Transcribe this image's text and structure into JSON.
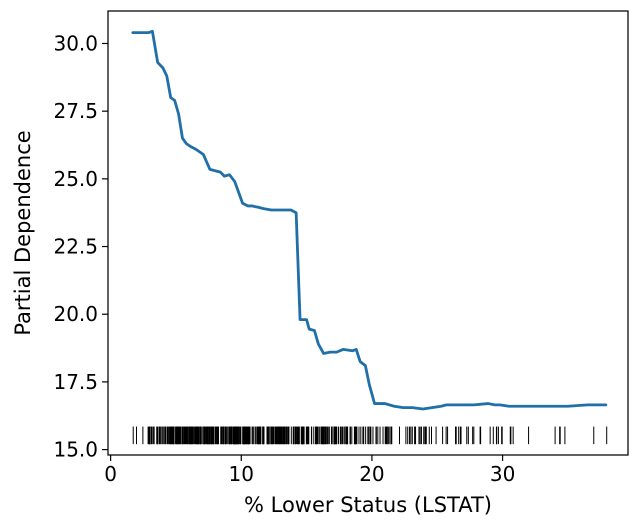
{
  "chart_data": {
    "type": "line",
    "title": "",
    "xlabel": "% Lower Status (LSTAT)",
    "ylabel": "Partial Dependence",
    "xlim": [
      -0.2,
      39.6
    ],
    "ylim": [
      14.8,
      31.2
    ],
    "xticks": [
      0,
      10,
      20,
      30
    ],
    "xtick_labels": [
      "0",
      "10",
      "20",
      "30"
    ],
    "yticks": [
      15.0,
      17.5,
      20.0,
      22.5,
      25.0,
      27.5,
      30.0
    ],
    "ytick_labels": [
      "15.0",
      "17.5",
      "20.0",
      "22.5",
      "25.0",
      "27.5",
      "30.0"
    ],
    "grid": false,
    "line_color": "#1f6fa8",
    "rug_color": "#000000",
    "series": [
      {
        "x": [
          1.7,
          2.9,
          3.2,
          3.6,
          4.0,
          4.3,
          4.6,
          4.9,
          5.2,
          5.5,
          5.8,
          6.1,
          6.5,
          6.8,
          7.1,
          7.6,
          8.0,
          8.4,
          8.7,
          9.1,
          9.5,
          9.8,
          10.1,
          10.5,
          10.8,
          11.3,
          11.7,
          12.3,
          13.0,
          13.8,
          14.2,
          14.5,
          14.7,
          15.0,
          15.2,
          15.6,
          15.9,
          16.3,
          16.8,
          17.3,
          17.8,
          18.5,
          18.8,
          19.1,
          19.5,
          19.8,
          20.2,
          21.0,
          21.7,
          22.4,
          23.1,
          23.9,
          24.6,
          25.3,
          25.7,
          26.5,
          27.8,
          28.9,
          29.4,
          29.8,
          30.5,
          32.0,
          33.0,
          34.0,
          35.0,
          36.5,
          37.9
        ],
        "y": [
          30.4,
          30.4,
          30.45,
          29.3,
          29.1,
          28.8,
          28.0,
          27.9,
          27.4,
          26.5,
          26.3,
          26.2,
          26.1,
          26.0,
          25.9,
          25.35,
          25.3,
          25.25,
          25.1,
          25.15,
          24.9,
          24.5,
          24.1,
          24.0,
          24.0,
          23.95,
          23.9,
          23.85,
          23.85,
          23.85,
          23.75,
          19.8,
          19.8,
          19.8,
          19.45,
          19.4,
          18.9,
          18.55,
          18.6,
          18.6,
          18.7,
          18.65,
          18.7,
          18.25,
          18.1,
          17.4,
          16.7,
          16.7,
          16.6,
          16.55,
          16.55,
          16.5,
          16.55,
          16.6,
          16.65,
          16.65,
          16.65,
          16.7,
          16.65,
          16.65,
          16.6,
          16.6,
          16.6,
          16.6,
          16.6,
          16.65,
          16.65
        ]
      }
    ],
    "rug": [
      1.73,
      1.98,
      2.47,
      2.87,
      2.94,
      2.96,
      2.98,
      3.01,
      3.11,
      3.16,
      3.26,
      3.33,
      3.53,
      3.56,
      3.57,
      3.59,
      3.7,
      3.73,
      3.76,
      3.81,
      3.92,
      3.95,
      4.03,
      4.14,
      4.16,
      4.21,
      4.32,
      4.38,
      4.45,
      4.5,
      4.56,
      4.59,
      4.63,
      4.67,
      4.7,
      4.74,
      4.81,
      4.82,
      4.84,
      4.85,
      4.86,
      4.97,
      5.03,
      5.04,
      5.08,
      5.1,
      5.12,
      5.19,
      5.21,
      5.25,
      5.29,
      5.33,
      5.39,
      5.49,
      5.5,
      5.52,
      5.57,
      5.64,
      5.68,
      5.7,
      5.77,
      5.81,
      5.89,
      5.9,
      5.98,
      5.99,
      6.05,
      6.07,
      6.12,
      6.15,
      6.19,
      6.21,
      6.27,
      6.29,
      6.36,
      6.43,
      6.47,
      6.53,
      6.56,
      6.58,
      6.62,
      6.65,
      6.68,
      6.72,
      6.73,
      6.75,
      6.78,
      6.86,
      6.87,
      6.9,
      6.92,
      7.01,
      7.12,
      7.14,
      7.18,
      7.19,
      7.2,
      7.26,
      7.34,
      7.37,
      7.39,
      7.43,
      7.44,
      7.51,
      7.53,
      7.54,
      7.56,
      7.6,
      7.67,
      7.7,
      7.73,
      7.74,
      7.79,
      7.83,
      7.85,
      7.88,
      7.9,
      8.01,
      8.05,
      8.1,
      8.16,
      8.2,
      8.23,
      8.26,
      8.43,
      8.47,
      8.51,
      8.58,
      8.61,
      8.65,
      8.67,
      8.77,
      8.79,
      8.81,
      8.88,
      8.93,
      9.04,
      9.08,
      9.1,
      9.14,
      9.16,
      9.22,
      9.25,
      9.28,
      9.29,
      9.38,
      9.42,
      9.43,
      9.45,
      9.47,
      9.5,
      9.51,
      9.52,
      9.53,
      9.54,
      9.55,
      9.59,
      9.62,
      9.64,
      9.67,
      9.68,
      9.69,
      9.71,
      9.74,
      9.8,
      9.81,
      9.88,
      9.93,
      9.97,
      10.11,
      10.13,
      10.15,
      10.16,
      10.19,
      10.21,
      10.24,
      10.26,
      10.27,
      10.29,
      10.3,
      10.36,
      10.4,
      10.42,
      10.45,
      10.5,
      10.53,
      10.56,
      10.58,
      10.59,
      10.63,
      10.74,
      10.87,
      10.88,
      10.97,
      11.1,
      11.12,
      11.22,
      11.25,
      11.28,
      11.32,
      11.34,
      11.38,
      11.41,
      11.45,
      11.48,
      11.5,
      11.64,
      11.65,
      11.66,
      11.69,
      11.72,
      11.74,
      11.97,
      11.98,
      12.01,
      12.03,
      12.04,
      12.12,
      12.13,
      12.14,
      12.26,
      12.27,
      12.33,
      12.34,
      12.4,
      12.43,
      12.5,
      12.6,
      12.64,
      12.67,
      12.73,
      12.79,
      12.8,
      12.86,
      12.87,
      12.92,
      12.93,
      13.0,
      13.04,
      13.09,
      13.11,
      13.15,
      13.22,
      13.27,
      13.28,
      13.33,
      13.35,
      13.44,
      13.45,
      13.51,
      13.59,
      13.61,
      13.65,
      13.83,
      13.98,
      13.99,
      14.0,
      14.1,
      14.13,
      14.15,
      14.19,
      14.27,
      14.33,
      14.36,
      14.37,
      14.43,
      14.44,
      14.59,
      14.64,
      14.65,
      14.66,
      14.67,
      14.69,
      14.7,
      14.76,
      14.79,
      14.8,
      14.81,
      14.98,
      15.02,
      15.03,
      15.1,
      15.12,
      15.17,
      15.37,
      15.39,
      15.55,
      15.69,
      15.7,
      15.71,
      15.76,
      15.79,
      15.84,
      15.94,
      16.03,
      16.14,
      16.2,
      16.21,
      16.22,
      16.23,
      16.29,
      16.3,
      16.35,
      16.42,
      16.44,
      16.47,
      16.51,
      16.59,
      16.65,
      16.74,
      16.9,
      16.94,
      16.96,
      17.09,
      17.1,
      17.11,
      17.12,
      17.15,
      17.16,
      17.19,
      17.21,
      17.27,
      17.28,
      17.31,
      17.44,
      17.58,
      17.6,
      17.64,
      17.73,
      17.79,
      17.92,
      17.93,
      18.03,
      18.05,
      18.06,
      18.07,
      18.13,
      18.14,
      18.33,
      18.34,
      18.35,
      18.46,
      18.66,
      18.68,
      18.71,
      18.72,
      18.76,
      18.8,
      18.85,
      19.01,
      19.15,
      19.31,
      19.37,
      19.52,
      19.69,
      19.77,
      19.78,
      19.88,
      19.92,
      20.08,
      20.31,
      20.34,
      20.45,
      20.62,
      20.85,
      21.02,
      21.08,
      21.14,
      21.22,
      21.24,
      21.32,
      21.45,
      21.46,
      21.52,
      22.11,
      22.6,
      22.74,
      22.88,
      22.98,
      23.09,
      23.27,
      23.29,
      23.34,
      23.6,
      23.69,
      23.79,
      23.97,
      23.98,
      24.08,
      24.1,
      24.16,
      24.39,
      24.56,
      24.91,
      25.41,
      25.68,
      25.79,
      26.4,
      26.42,
      26.45,
      26.64,
      26.77,
      26.82,
      27.26,
      27.38,
      27.71,
      27.8,
      28.28,
      28.32,
      29.05,
      29.29,
      29.53,
      29.55,
      29.68,
      29.93,
      29.97,
      30.59,
      30.62,
      30.63,
      30.81,
      31.99,
      34.02,
      34.37,
      34.41,
      34.77,
      36.98,
      37.97
    ],
    "legend": "none"
  }
}
